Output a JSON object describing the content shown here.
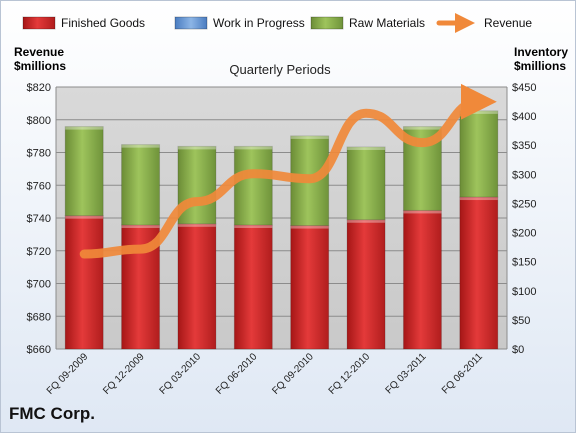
{
  "chart_data": {
    "type": "bar",
    "title": "Quarterly Periods",
    "categories": [
      "FQ 09-2009",
      "FQ 12-2009",
      "FQ 03-2010",
      "FQ 06-2010",
      "FQ 09-2010",
      "FQ 12-2010",
      "FQ 03-2011",
      "FQ 06-2011"
    ],
    "stacked": true,
    "series": [
      {
        "name": "Finished Goods",
        "axis": "right",
        "color": "#d42a2a",
        "values": [
          229,
          213,
          215,
          213,
          212,
          222,
          238,
          261
        ]
      },
      {
        "name": "Work in Progress",
        "axis": "right",
        "color": "#6f9fd8",
        "values": [
          0,
          0,
          0,
          0,
          0,
          0,
          0,
          0
        ]
      },
      {
        "name": "Raw Materials",
        "axis": "right",
        "color": "#8db04e",
        "values": [
          153,
          138,
          133,
          135,
          154,
          125,
          144,
          148
        ]
      },
      {
        "name": "Revenue",
        "axis": "left",
        "type": "line",
        "color": "#f0893a",
        "values": [
          718,
          721,
          750,
          767,
          764,
          804,
          786,
          811
        ]
      }
    ],
    "ylabel_left": "Revenue\n$millions",
    "ylabel_right": "Inventory\n$millions",
    "ylim_left": [
      660,
      820
    ],
    "ylim_right": [
      0,
      450
    ],
    "yticks_left": [
      "$660",
      "$680",
      "$700",
      "$720",
      "$740",
      "$760",
      "$780",
      "$800",
      "$820"
    ],
    "yticks_right": [
      "$0",
      "$50",
      "$100",
      "$150",
      "$200",
      "$250",
      "$300",
      "$350",
      "$400",
      "$450"
    ],
    "grid": true,
    "legend_position": "top"
  },
  "left_axis_title": [
    "Revenue",
    "$millions"
  ],
  "right_axis_title": [
    "Inventory",
    "$millions"
  ],
  "company": "FMC Corp."
}
